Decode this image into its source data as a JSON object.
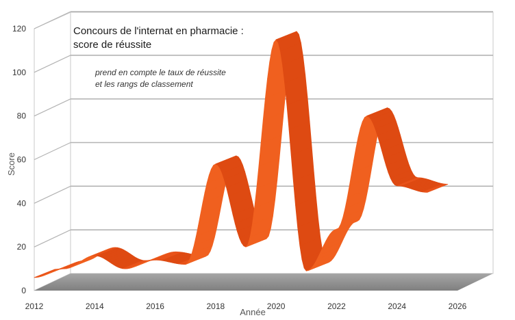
{
  "chart_data": {
    "type": "line",
    "style": "3d-ribbon",
    "title_line1": "Concours de l'internat en pharmacie :",
    "title_line2": "score de réussite",
    "subtitle_line1": "prend en compte le taux de réussite",
    "subtitle_line2": "et les rangs de classement",
    "xlabel": "Année",
    "ylabel": "Score",
    "x_ticks": [
      "2012",
      "2014",
      "2016",
      "2018",
      "2020",
      "2022",
      "2024",
      "2026"
    ],
    "y_ticks": [
      "0",
      "20",
      "40",
      "60",
      "80",
      "100",
      "120"
    ],
    "xlim": [
      2012,
      2026
    ],
    "ylim": [
      0,
      120
    ],
    "grid": true,
    "ribbon_color": "#e8531a",
    "series": [
      {
        "x": [
          2012,
          2013,
          2014,
          2015,
          2016,
          2017,
          2018,
          2019,
          2020,
          2021,
          2022,
          2023,
          2024,
          2025
        ],
        "values": [
          6,
          10,
          16,
          10,
          14,
          12,
          58,
          20,
          115,
          9,
          28,
          80,
          48,
          45
        ]
      }
    ]
  }
}
